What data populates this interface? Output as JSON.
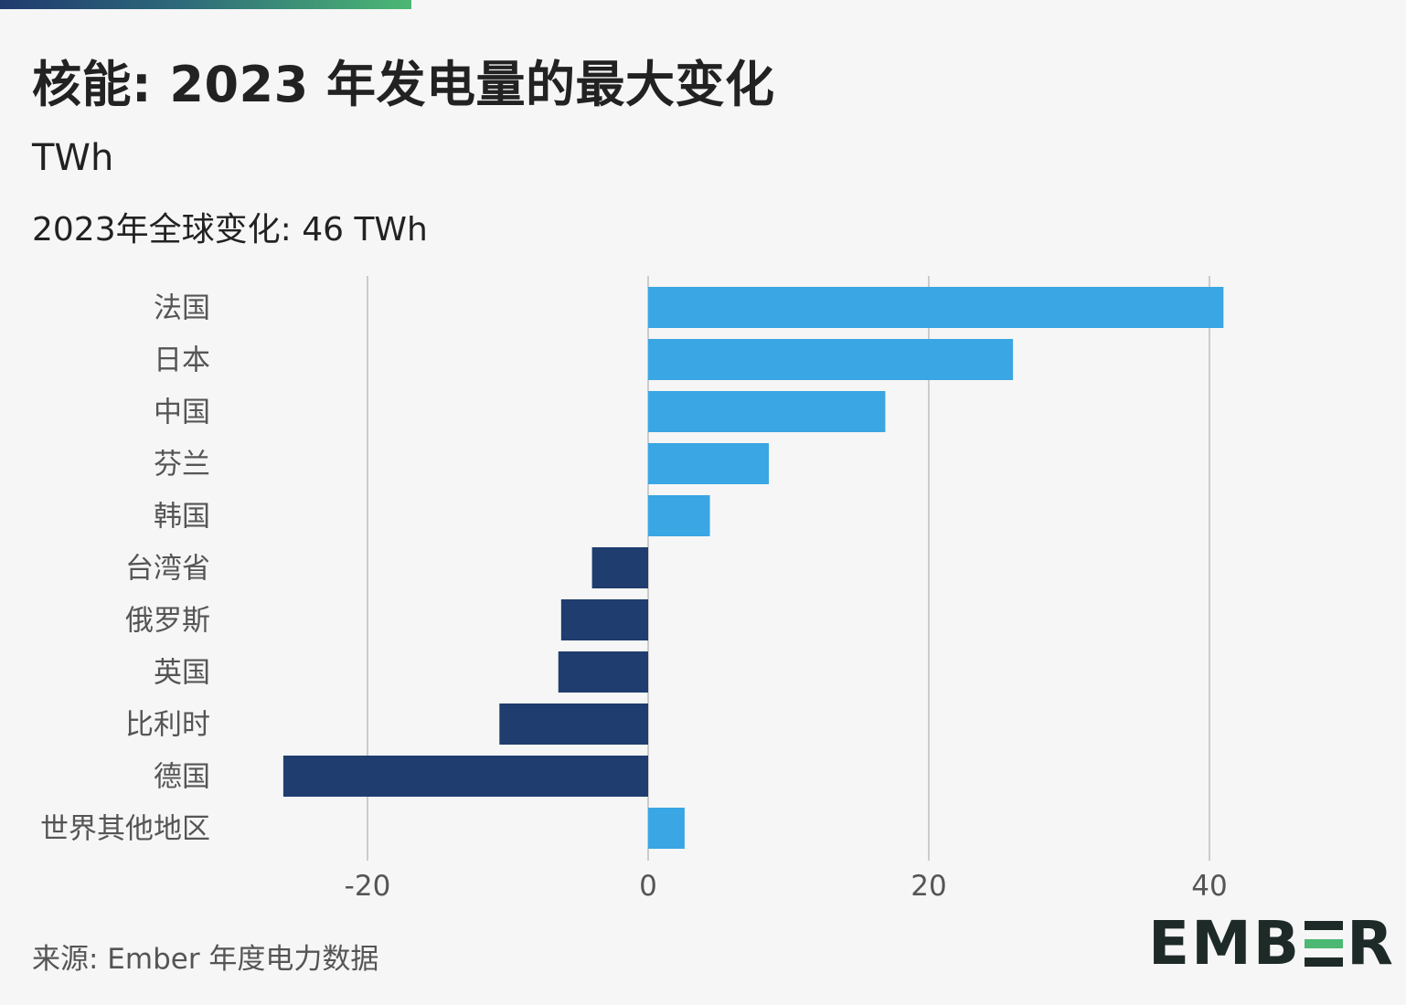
{
  "title": "核能: 2023 年发电量的最大变化",
  "unit": "TWh",
  "subtitle": "2023年全球变化: 46 TWh",
  "source": "来源: Ember 年度电力数据",
  "logo": {
    "part1": "EMB",
    "part2": "R"
  },
  "colors": {
    "positive": "#3aa6e4",
    "negative": "#1f3d6e",
    "gridline": "#cccccc"
  },
  "chart_data": {
    "type": "bar",
    "orientation": "horizontal",
    "title": "核能: 2023 年发电量的最大变化",
    "xlabel": "TWh",
    "ylabel": "",
    "xlim": [
      -30,
      50
    ],
    "ticks": [
      -20,
      0,
      20,
      40
    ],
    "tick_labels": [
      "-20",
      "0",
      "20",
      "40"
    ],
    "grid": true,
    "categories": [
      "法国",
      "日本",
      "中国",
      "芬兰",
      "韩国",
      "台湾省",
      "俄罗斯",
      "英国",
      "比利时",
      "德国",
      "世界其他地区"
    ],
    "values": [
      41,
      26,
      16.9,
      8.6,
      4.4,
      -4,
      -6.2,
      -6.4,
      -10.6,
      -26,
      2.6
    ]
  }
}
